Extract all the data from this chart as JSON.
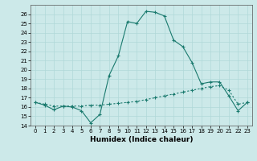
{
  "xlabel": "Humidex (Indice chaleur)",
  "ylabel": "",
  "bg_color": "#cce9e9",
  "line_color": "#1a7a6e",
  "xlim": [
    -0.5,
    23.5
  ],
  "ylim": [
    14,
    27
  ],
  "yticks": [
    14,
    15,
    16,
    17,
    18,
    19,
    20,
    21,
    22,
    23,
    24,
    25,
    26
  ],
  "xticks": [
    0,
    1,
    2,
    3,
    4,
    5,
    6,
    7,
    8,
    9,
    10,
    11,
    12,
    13,
    14,
    15,
    16,
    17,
    18,
    19,
    20,
    21,
    22,
    23
  ],
  "curve1_x": [
    0,
    1,
    2,
    3,
    4,
    5,
    6,
    7,
    8,
    9,
    10,
    11,
    12,
    13,
    14,
    15,
    16,
    17,
    18,
    19,
    20,
    21,
    22,
    23
  ],
  "curve1_y": [
    16.5,
    16.2,
    15.7,
    16.1,
    16.0,
    15.6,
    14.3,
    15.2,
    19.4,
    21.5,
    25.2,
    25.0,
    26.3,
    26.2,
    25.8,
    23.2,
    22.5,
    20.8,
    18.5,
    18.7,
    18.7,
    17.2,
    15.6,
    16.5
  ],
  "curve2_x": [
    0,
    1,
    2,
    3,
    4,
    5,
    6,
    7,
    8,
    9,
    10,
    11,
    12,
    13,
    14,
    15,
    16,
    17,
    18,
    19,
    20,
    21,
    22,
    23
  ],
  "curve2_y": [
    16.5,
    16.3,
    16.1,
    16.1,
    16.1,
    16.1,
    16.2,
    16.2,
    16.3,
    16.4,
    16.5,
    16.6,
    16.8,
    17.0,
    17.2,
    17.4,
    17.6,
    17.8,
    18.0,
    18.2,
    18.3,
    17.8,
    16.3,
    16.5
  ]
}
